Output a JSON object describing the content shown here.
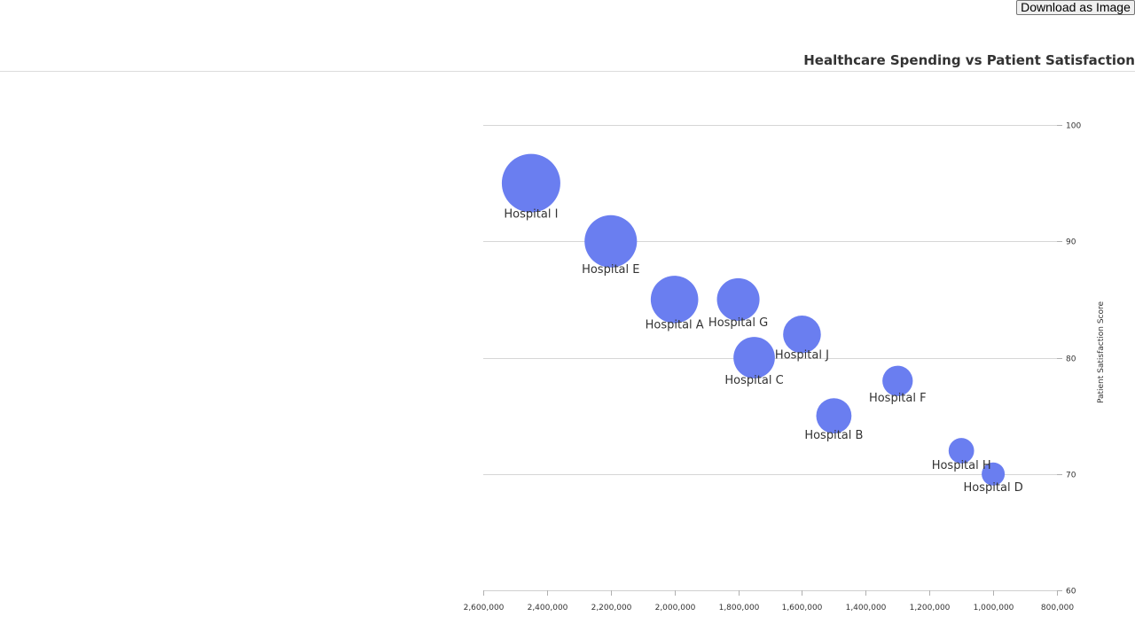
{
  "toolbar": {
    "download_label": "Download as Image"
  },
  "chart_data": {
    "type": "scatter",
    "title": "Healthcare Spending vs Patient Satisfaction",
    "xlabel": "",
    "ylabel": "Patient Satisfaction Score",
    "xlim": [
      800000,
      2600000
    ],
    "x_reversed": true,
    "ylim": [
      60,
      100
    ],
    "y_axis_side": "right",
    "grid": "horizontal",
    "x_ticks": [
      2600000,
      2400000,
      2200000,
      2000000,
      1800000,
      1600000,
      1400000,
      1200000,
      1000000,
      800000
    ],
    "x_tick_labels": [
      "2,600,000",
      "2,400,000",
      "2,200,000",
      "2,000,000",
      "1,800,000",
      "1,600,000",
      "1,400,000",
      "1,200,000",
      "1,000,000",
      "800,000"
    ],
    "y_ticks": [
      60,
      70,
      80,
      90,
      100
    ],
    "y_tick_labels": [
      "60",
      "70",
      "80",
      "90",
      "100"
    ],
    "bubble_color": "#6a7ef0",
    "points": [
      {
        "label": "Hospital I",
        "x": 2450000,
        "y": 95
      },
      {
        "label": "Hospital E",
        "x": 2200000,
        "y": 90
      },
      {
        "label": "Hospital A",
        "x": 2000000,
        "y": 85
      },
      {
        "label": "Hospital G",
        "x": 1800000,
        "y": 85
      },
      {
        "label": "Hospital J",
        "x": 1600000,
        "y": 82
      },
      {
        "label": "Hospital C",
        "x": 1750000,
        "y": 80
      },
      {
        "label": "Hospital F",
        "x": 1300000,
        "y": 78
      },
      {
        "label": "Hospital B",
        "x": 1500000,
        "y": 75
      },
      {
        "label": "Hospital H",
        "x": 1100000,
        "y": 72
      },
      {
        "label": "Hospital D",
        "x": 1000000,
        "y": 70
      }
    ]
  }
}
